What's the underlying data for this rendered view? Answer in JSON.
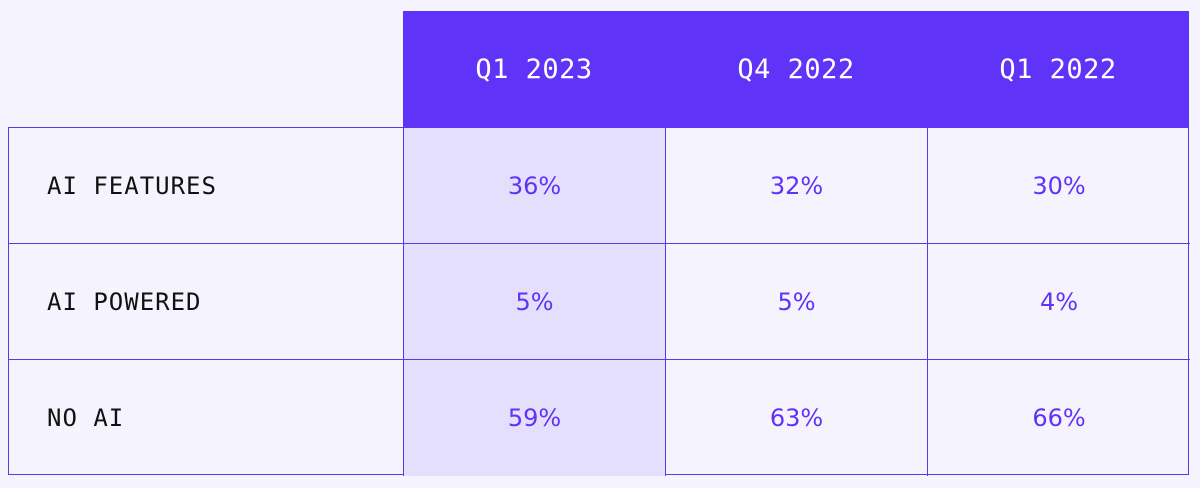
{
  "chart_data": {
    "type": "table",
    "columns": [
      "Q1 2023",
      "Q4 2022",
      "Q1 2022"
    ],
    "rows": [
      {
        "label": "AI FEATURES",
        "values": [
          "36%",
          "32%",
          "30%"
        ]
      },
      {
        "label": "AI POWERED",
        "values": [
          "5%",
          "5%",
          "4%"
        ]
      },
      {
        "label": "NO AI",
        "values": [
          "59%",
          "63%",
          "66%"
        ]
      }
    ],
    "highlight_column": "Q1 2023"
  },
  "colors": {
    "accent": "#5f33f8",
    "highlight_fill": "#e4dffc",
    "background": "#f5f3fd",
    "border": "#5a3ae8"
  }
}
